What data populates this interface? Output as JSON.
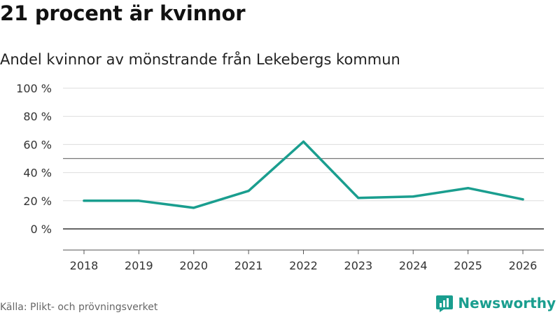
{
  "header": {
    "title": "21 procent är kvinnor",
    "subtitle": "Andel kvinnor av mönstrande från Lekebergs kommun"
  },
  "footer": {
    "source": "Källa: Plikt- och prövningsverket",
    "brand": "Newsworthy"
  },
  "colors": {
    "line": "#1a9e8f",
    "grid": "#dddddd",
    "zero_line": "#333333",
    "reference_line": "#777777"
  },
  "chart_data": {
    "type": "line",
    "title": "21 procent är kvinnor",
    "subtitle": "Andel kvinnor av mönstrande från Lekebergs kommun",
    "xlabel": "",
    "ylabel": "",
    "categories": [
      "2018",
      "2019",
      "2020",
      "2021",
      "2022",
      "2023",
      "2024",
      "2025",
      "2026"
    ],
    "series": [
      {
        "name": "Andel kvinnor",
        "values": [
          20,
          20,
          15,
          27,
          62,
          22,
          23,
          29,
          21
        ]
      }
    ],
    "ylim": [
      -15,
      100
    ],
    "yticks": [
      0,
      20,
      40,
      60,
      80,
      100
    ],
    "ytick_labels": [
      "0 %",
      "20 %",
      "40 %",
      "60 %",
      "80 %",
      "100 %"
    ],
    "reference_line": 50,
    "grid": true,
    "legend": "none"
  }
}
